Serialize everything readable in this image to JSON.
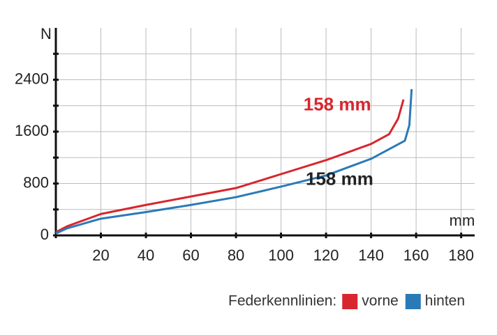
{
  "chart_data": {
    "type": "line",
    "y_label": "N",
    "x_label": "mm",
    "xlim": [
      0,
      186
    ],
    "ylim": [
      0,
      3200
    ],
    "xticks": [
      20,
      40,
      60,
      80,
      100,
      120,
      140,
      160,
      180
    ],
    "yticks": [
      0,
      800,
      1600,
      2400
    ],
    "yminor_ticks": [
      400,
      1200,
      2000,
      2800
    ],
    "grid": true,
    "legend_title": "Federkennlinien:",
    "series": [
      {
        "name": "vorne",
        "color": "#d7262e",
        "x": [
          0,
          5,
          20,
          40,
          60,
          80,
          100,
          120,
          140,
          148,
          152,
          154.4
        ],
        "values": [
          50,
          140,
          330,
          470,
          600,
          730,
          945,
          1160,
          1410,
          1560,
          1800,
          2095
        ]
      },
      {
        "name": "hinten",
        "color": "#2a7ab8",
        "x": [
          0,
          5,
          20,
          40,
          60,
          80,
          100,
          120,
          140,
          155,
          157,
          158
        ],
        "values": [
          30,
          110,
          258,
          360,
          470,
          590,
          752,
          924,
          1181,
          1460,
          1700,
          2255
        ]
      }
    ],
    "annotations": [
      {
        "text": "158 mm",
        "x": 140,
        "y": 2000,
        "color": "#d7262e"
      },
      {
        "text": "158 mm",
        "x": 141,
        "y": 850,
        "color": "#222"
      }
    ]
  }
}
